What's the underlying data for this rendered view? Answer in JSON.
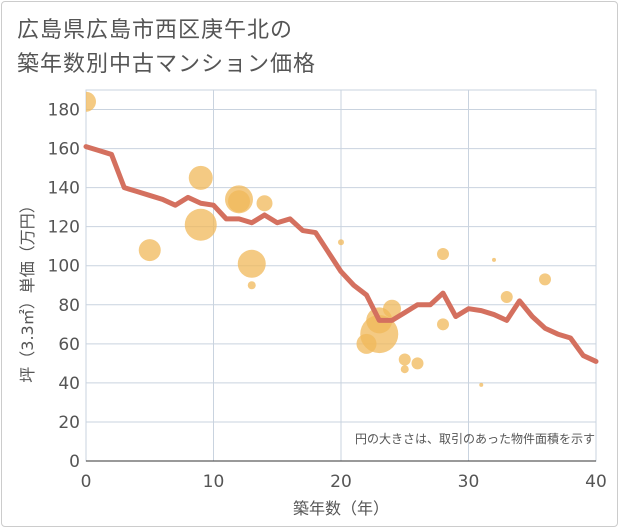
{
  "title": "広島県広島市西区庚午北の\n築年数別中古マンション価格",
  "chart_data": {
    "type": "scatter",
    "title": "広島県広島市西区庚午北の築年数別中古マンション価格",
    "xlabel": "築年数（年）",
    "ylabel": "坪（3.3㎡）単価（万円）",
    "xlim": [
      0,
      40
    ],
    "ylim": [
      0,
      190
    ],
    "xticks": [
      0,
      10,
      20,
      30,
      40
    ],
    "yticks": [
      0,
      20,
      40,
      60,
      80,
      100,
      120,
      140,
      160,
      180
    ],
    "grid": true,
    "note": "円の大きさは、取引のあった物件面積を示す",
    "colors": {
      "bubble": "#f0b85a",
      "line": "#d4705f",
      "grid": "#c9d3df"
    },
    "bubbles": [
      {
        "x": 0,
        "y": 184,
        "size": 10
      },
      {
        "x": 5,
        "y": 108,
        "size": 11
      },
      {
        "x": 9,
        "y": 145,
        "size": 12
      },
      {
        "x": 9,
        "y": 121,
        "size": 16
      },
      {
        "x": 12,
        "y": 134,
        "size": 14
      },
      {
        "x": 12,
        "y": 133,
        "size": 11
      },
      {
        "x": 13,
        "y": 101,
        "size": 14
      },
      {
        "x": 13,
        "y": 90,
        "size": 4
      },
      {
        "x": 14,
        "y": 132,
        "size": 8
      },
      {
        "x": 20,
        "y": 112,
        "size": 3
      },
      {
        "x": 22,
        "y": 60,
        "size": 10
      },
      {
        "x": 23,
        "y": 65,
        "size": 19
      },
      {
        "x": 23,
        "y": 72,
        "size": 13
      },
      {
        "x": 24,
        "y": 78,
        "size": 9
      },
      {
        "x": 25,
        "y": 52,
        "size": 6
      },
      {
        "x": 25,
        "y": 47,
        "size": 4
      },
      {
        "x": 26,
        "y": 50,
        "size": 6
      },
      {
        "x": 28,
        "y": 106,
        "size": 6
      },
      {
        "x": 28,
        "y": 70,
        "size": 6
      },
      {
        "x": 31,
        "y": 39,
        "size": 2
      },
      {
        "x": 32,
        "y": 103,
        "size": 2
      },
      {
        "x": 33,
        "y": 84,
        "size": 6
      },
      {
        "x": 36,
        "y": 93,
        "size": 6
      }
    ],
    "series": [
      {
        "type": "line",
        "x": [
          0,
          1,
          2,
          3,
          4,
          5,
          6,
          7,
          8,
          9,
          10,
          11,
          12,
          13,
          14,
          15,
          16,
          17,
          18,
          19,
          20,
          21,
          22,
          23,
          24,
          25,
          26,
          27,
          28,
          29,
          30,
          31,
          32,
          33,
          34,
          35,
          36,
          37,
          38,
          39,
          40
        ],
        "y": [
          161,
          159,
          157,
          140,
          138,
          136,
          134,
          131,
          135,
          132,
          131,
          124,
          124,
          122,
          126,
          122,
          124,
          118,
          117,
          107,
          97,
          90,
          85,
          72,
          72,
          76,
          80,
          80,
          86,
          74,
          78,
          77,
          75,
          72,
          82,
          74,
          68,
          65,
          63,
          54,
          51
        ]
      }
    ]
  }
}
